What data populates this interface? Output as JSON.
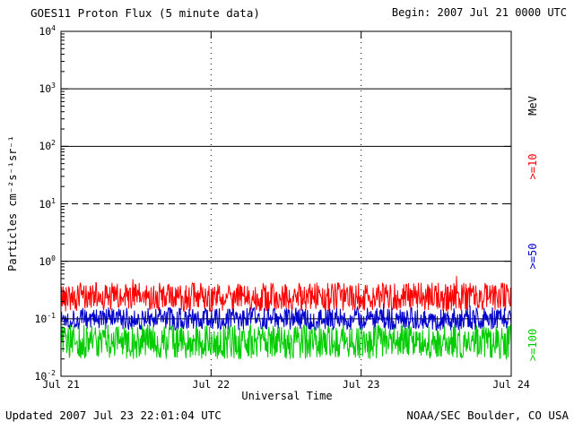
{
  "header": {
    "title": "GOES11 Proton Flux (5 minute data)",
    "begin_label": "Begin: 2007 Jul 21 0000 UTC"
  },
  "footer": {
    "updated": "Updated 2007 Jul 23 22:01:04 UTC",
    "org": "NOAA/SEC Boulder, CO USA"
  },
  "chart_data": {
    "type": "line",
    "title": "GOES11 Proton Flux (5 minute data)",
    "xlabel": "Universal Time",
    "ylabel": "Particles cm⁻²s⁻¹sr⁻¹",
    "x_tick_labels": [
      "Jul 21",
      "Jul 22",
      "Jul 23",
      "Jul 24"
    ],
    "y_tick_exponents": [
      4,
      3,
      2,
      1,
      0,
      -1,
      -2
    ],
    "y_log_range": [
      -2,
      4
    ],
    "x_range_days": 3,
    "points_per_day": 288,
    "grid": {
      "hline_solid_levels": [
        3,
        2,
        0,
        -1
      ],
      "hline_dashed_levels": [
        1
      ],
      "vline_dotted_days": [
        1,
        2
      ]
    },
    "right_axis": {
      "unit_label": "MeV",
      "unit_color": "#000000",
      "series_labels": [
        {
          "text": ">=10",
          "color": "#ff0000"
        },
        {
          "text": ">=50",
          "color": "#0000cc"
        },
        {
          "text": ">=100",
          "color": "#00cc00"
        }
      ]
    },
    "series": [
      {
        "name": ">=10 MeV",
        "color": "#ff0000",
        "base_log10": -0.62,
        "noise_log10": 0.25,
        "spike_prob": 0.03,
        "spike_log10": 0.18,
        "seed": 42
      },
      {
        "name": ">=50 MeV",
        "color": "#0000cc",
        "base_log10": -1.0,
        "noise_log10": 0.2,
        "spike_prob": 0.01,
        "spike_log10": 0.1,
        "seed": 1337
      },
      {
        "name": ">=100 MeV",
        "color": "#00cc00",
        "base_log10": -1.4,
        "noise_log10": 0.3,
        "spike_prob": 0.01,
        "spike_log10": 0.1,
        "seed": 2718
      }
    ]
  }
}
